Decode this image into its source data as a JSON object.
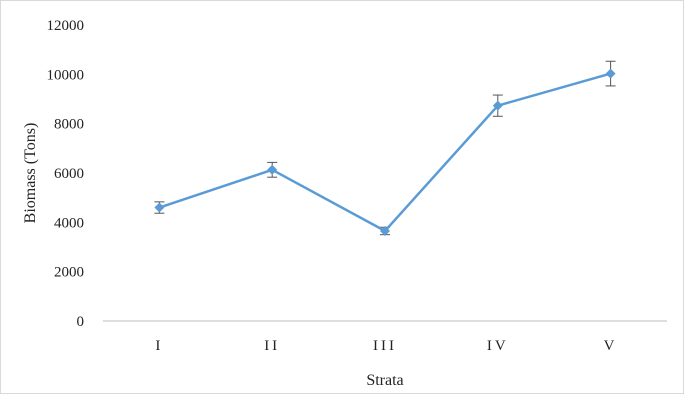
{
  "chart_data": {
    "type": "line",
    "title": "",
    "xlabel": "Strata",
    "ylabel": "Biomass (Tons)",
    "categories": [
      "I",
      "II",
      "III",
      "IV",
      "V"
    ],
    "series": [
      {
        "values": [
          4600,
          6130,
          3650,
          8730,
          10030
        ],
        "error": [
          230,
          300,
          150,
          430,
          500
        ]
      }
    ],
    "ylim": [
      0,
      12000
    ],
    "yticks": [
      0,
      2000,
      4000,
      6000,
      8000,
      10000,
      12000
    ],
    "grid": false,
    "legend": "none",
    "colors": {
      "line": "#5b9bd5",
      "error_bar": "#555555",
      "axis": "#bfbfbf"
    }
  }
}
